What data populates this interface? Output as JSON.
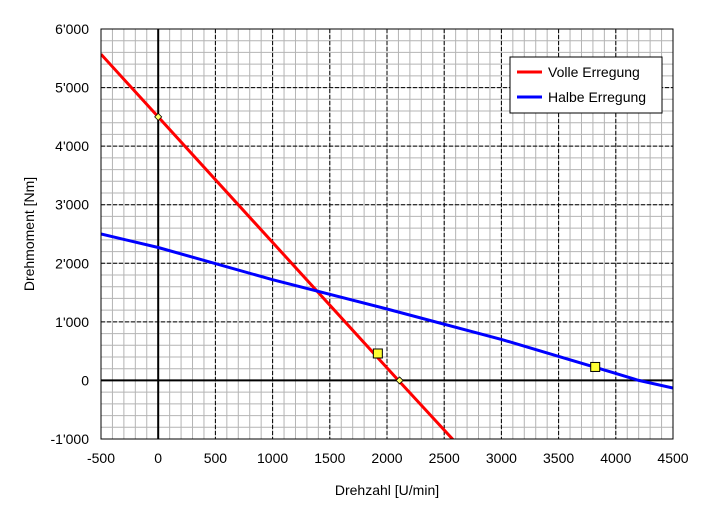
{
  "chart_data": {
    "type": "line",
    "xlabel": "Drehzahl [U/min]",
    "ylabel": "Drehmoment [Nm]",
    "xlim": [
      -500,
      4500
    ],
    "ylim": [
      -1000,
      6000
    ],
    "x_ticks": [
      -500,
      0,
      500,
      1000,
      1500,
      2000,
      2500,
      3000,
      3500,
      4000,
      4500
    ],
    "x_tick_labels": [
      "-500",
      "0",
      "500",
      "1000",
      "1500",
      "2000",
      "2500",
      "3000",
      "3500",
      "4000",
      "4500"
    ],
    "y_ticks": [
      -1000,
      0,
      1000,
      2000,
      3000,
      4000,
      5000,
      6000
    ],
    "y_tick_labels": [
      "-1'000",
      "0",
      "1'000",
      "2'000",
      "3'000",
      "4'000",
      "5'000",
      "6'000"
    ],
    "grid": true,
    "legend_position": "top-right",
    "series": [
      {
        "name": "Volle Erregung",
        "color": "#ff0000",
        "x": [
          -500,
          0,
          2100,
          2620
        ],
        "y": [
          5570,
          4500,
          0,
          -1100
        ]
      },
      {
        "name": "Halbe Erregung",
        "color": "#0000ff",
        "x": [
          -500,
          0,
          1000,
          1500,
          2000,
          3000,
          4000,
          4200,
          4500
        ],
        "y": [
          2500,
          2270,
          1720,
          1470,
          1220,
          700,
          120,
          0,
          -130
        ]
      }
    ],
    "markers": [
      {
        "shape": "diamond",
        "x": 0,
        "y": 4500,
        "color": "#ffff66"
      },
      {
        "shape": "diamond",
        "x": 2110,
        "y": 0,
        "color": "#ffff66"
      },
      {
        "shape": "square",
        "x": 1920,
        "y": 460,
        "color": "#ffff33"
      },
      {
        "shape": "square",
        "x": 3820,
        "y": 230,
        "color": "#ffff33"
      }
    ]
  }
}
